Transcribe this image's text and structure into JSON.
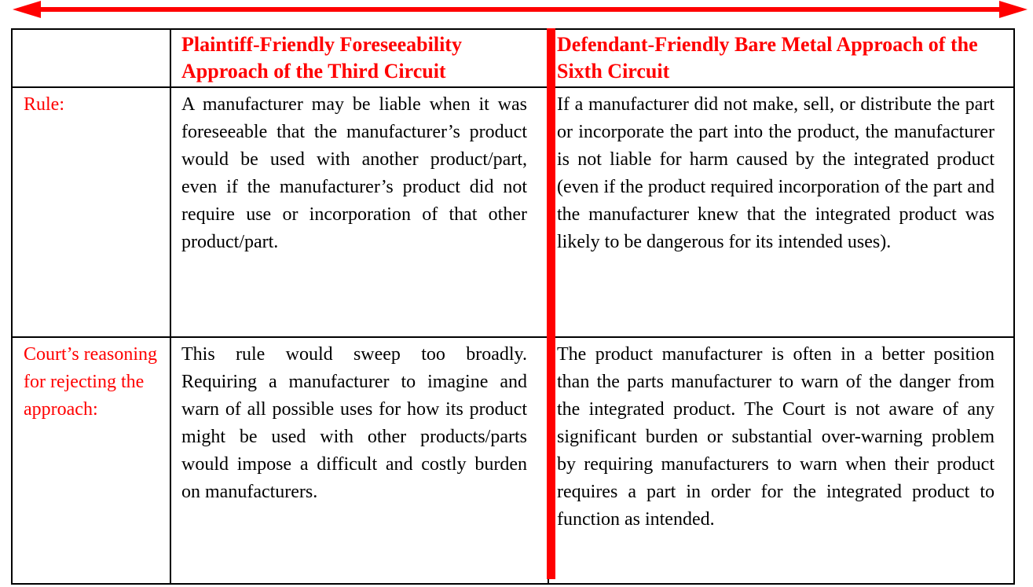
{
  "arrow": {
    "name": "double-headed-arrow",
    "color": "#ff0000"
  },
  "table": {
    "header": {
      "label_col": "",
      "third_circuit": "Plaintiff-Friendly Foreseeability Approach of the Third Circuit",
      "sixth_circuit": "Defendant-Friendly Bare Metal Approach of the Sixth Circuit"
    },
    "rows": [
      {
        "label": "Rule:",
        "third_circuit": "A manufacturer may be liable when it was foreseeable that the manufacturer’s product would be used with another product/part, even if the manufacturer’s product did not require use or incorporation of that other product/part.",
        "sixth_circuit": "If a manufacturer did not make, sell, or distribute the part or incorporate the part into the product, the manufacturer is not liable for harm caused by the integrated product (even if the product required incorporation of the part and the manufacturer knew that the integrated product was likely to be dangerous for its intended uses)."
      },
      {
        "label": "Court’s reasoning for rejecting the approach:",
        "third_circuit": "This rule would sweep too broadly. Requiring a manufacturer to imagine and warn of all possible uses for how its product might be used with other products/parts would impose a difficult and costly burden on manufacturers.",
        "sixth_circuit": "The product manufacturer is often in a better position than the parts manufacturer to warn of the danger from the integrated product. The Court is not aware of any significant burden or substantial over-warning problem by requiring manufacturers to warn when their product requires a part in order for the integrated product to function as intended."
      }
    ]
  },
  "colors": {
    "accent_red": "#ff0000",
    "text_black": "#000000",
    "background": "#ffffff"
  }
}
